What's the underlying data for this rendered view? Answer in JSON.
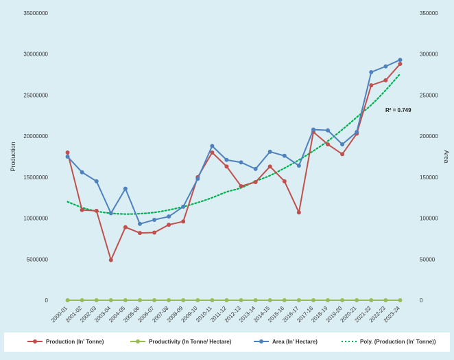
{
  "chart_data": {
    "type": "line",
    "categories": [
      "2000-01",
      "2001-02",
      "2002-03",
      "2003-04",
      "2004-05",
      "2005-06",
      "2006-07",
      "2007-08",
      "2008-09",
      "2009-10",
      "2010-11",
      "2011-12",
      "2012-13",
      "2013-14",
      "2014-15",
      "2015-16",
      "2016-17",
      "2017-18",
      "2018-19",
      "2019-20",
      "2020-21",
      "2021-22",
      "2022-23",
      "2023-24"
    ],
    "ylabel": "Production",
    "y2label": "Area",
    "ylim": [
      0,
      35000000
    ],
    "y2lim": [
      0,
      350000
    ],
    "yticks": [
      "0",
      "5000000",
      "10000000",
      "15000000",
      "20000000",
      "25000000",
      "30000000",
      "35000000"
    ],
    "y2ticks": [
      "0",
      "50000",
      "100000",
      "150000",
      "200000",
      "250000",
      "300000",
      "350000"
    ],
    "grid": false,
    "legend_position": "bottom",
    "annotation": "R² = 0.749",
    "series": [
      {
        "name": "Production (In' Tonne)",
        "axis": "left",
        "color": "#c0504d",
        "values": [
          18000000,
          11000000,
          10900000,
          4900000,
          8900000,
          8200000,
          8250000,
          9200000,
          9600000,
          15000000,
          18000000,
          16300000,
          13900000,
          14400000,
          16300000,
          14500000,
          10700000,
          20500000,
          19000000,
          17800000,
          20300000,
          26200000,
          26800000,
          28800000
        ]
      },
      {
        "name": "Productivity (In Tonne/ Hectare)",
        "axis": "left",
        "color": "#9bbb59",
        "values": [
          0,
          0,
          0,
          0,
          0,
          0,
          0,
          0,
          0,
          0,
          0,
          0,
          0,
          0,
          0,
          0,
          0,
          0,
          0,
          0,
          0,
          0,
          0,
          0
        ]
      },
      {
        "name": "Area (In' Hectare)",
        "axis": "right",
        "color": "#4f81bd",
        "values": [
          175000,
          156000,
          145000,
          106000,
          136000,
          93000,
          98000,
          102000,
          114000,
          148000,
          188000,
          171000,
          168000,
          160000,
          181000,
          176000,
          164000,
          208000,
          207000,
          190000,
          205000,
          278000,
          285000,
          293000
        ]
      },
      {
        "name": "Poly. (Production (In' Tonne))",
        "axis": "left",
        "color": "#00b050",
        "style": "dotted",
        "values": [
          12000000,
          11300000,
          10850000,
          10600000,
          10500000,
          10550000,
          10700000,
          11000000,
          11400000,
          11900000,
          12500000,
          13200000,
          13700000,
          14500000,
          15200000,
          16100000,
          17100000,
          18200000,
          19400000,
          20800000,
          22300000,
          23800000,
          25600000,
          27600000
        ]
      }
    ],
    "legend": [
      {
        "label": "Production (In' Tonne)",
        "color": "#c0504d",
        "marker": "circle",
        "style": "solid"
      },
      {
        "label": "Productivity (In Tonne/ Hectare)",
        "color": "#9bbb59",
        "marker": "circle",
        "style": "solid"
      },
      {
        "label": "Area (In' Hectare)",
        "color": "#4f81bd",
        "marker": "circle",
        "style": "solid"
      },
      {
        "label": "Poly. (Production (In' Tonne))",
        "color": "#00b050",
        "marker": "none",
        "style": "dotted"
      }
    ],
    "colors": {
      "plot_background": "#dbeef4"
    }
  }
}
